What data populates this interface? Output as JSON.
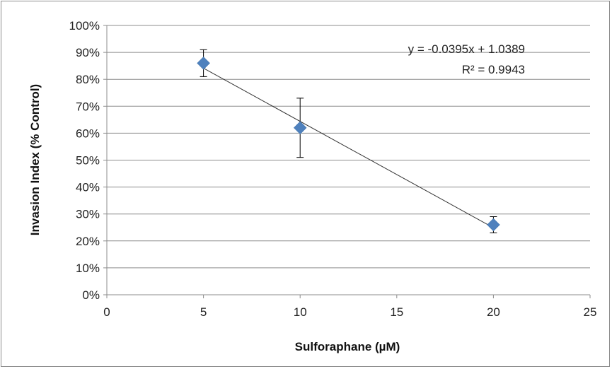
{
  "chart_data": {
    "type": "scatter",
    "xlabel": "Sulforaphane (µM)",
    "ylabel": "Invasion Index (% Control)",
    "xlim": [
      0,
      25
    ],
    "ylim": [
      0,
      1.0
    ],
    "x_ticks": [
      "0",
      "5",
      "10",
      "15",
      "20",
      "25"
    ],
    "y_ticks": [
      "0%",
      "10%",
      "20%",
      "30%",
      "40%",
      "50%",
      "60%",
      "70%",
      "80%",
      "90%",
      "100%"
    ],
    "grid": "horizontal",
    "points": [
      {
        "x": 5,
        "y": 0.86,
        "err_low": 0.81,
        "err_high": 0.91
      },
      {
        "x": 10,
        "y": 0.62,
        "err_low": 0.51,
        "err_high": 0.73
      },
      {
        "x": 20,
        "y": 0.26,
        "err_low": 0.23,
        "err_high": 0.29
      }
    ],
    "trendline": {
      "slope": -0.0395,
      "intercept": 1.0389
    },
    "equation": "y = -0.0395x + 1.0389",
    "r_squared": "R² = 0.9943",
    "marker_color": "#4f81bd"
  }
}
